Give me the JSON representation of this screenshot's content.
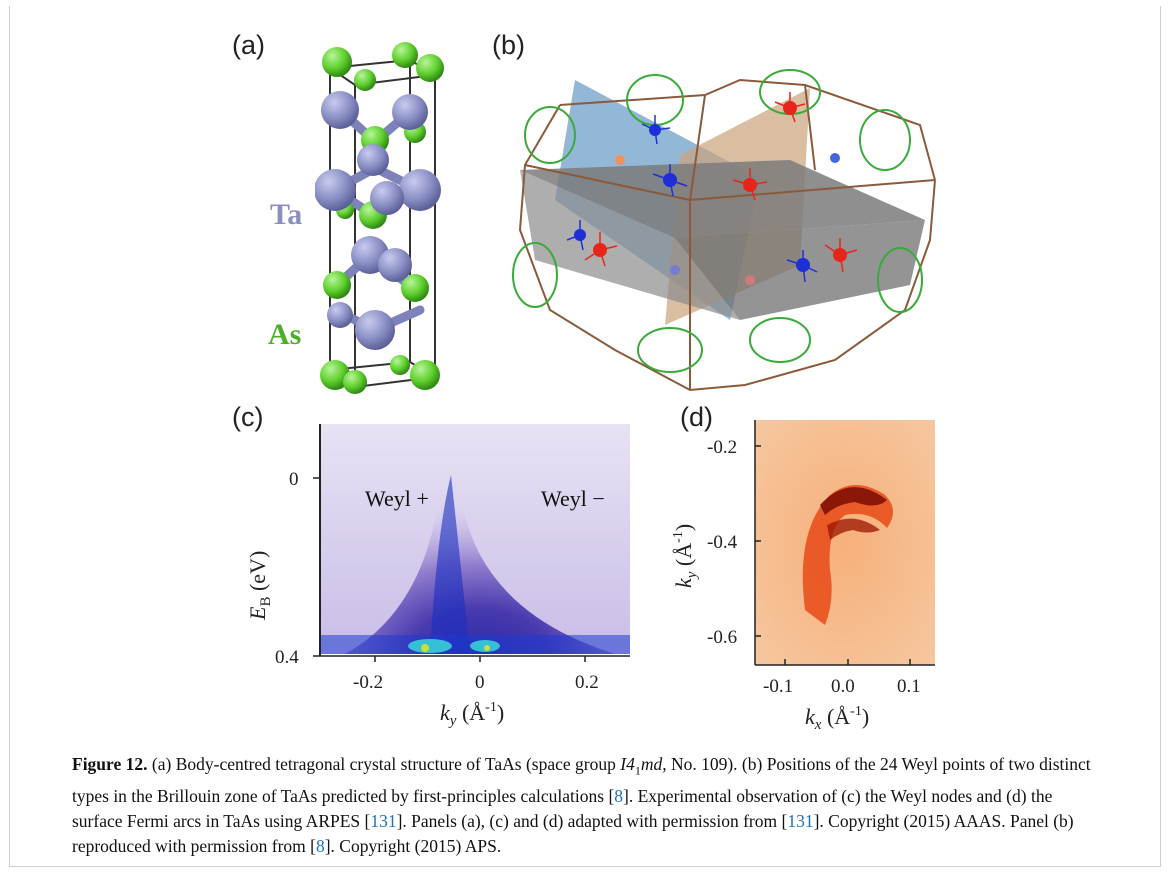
{
  "panels": {
    "a": {
      "label": "(a)",
      "ta_label": "Ta",
      "as_label": "As",
      "ta_color": "#8a8fbf",
      "as_color": "#4caf2a"
    },
    "b": {
      "label": "(b)"
    },
    "c": {
      "label": "(c)",
      "y_ticks": [
        "0",
        "0.4"
      ],
      "x_ticks": [
        "-0.2",
        "0",
        "0.2"
      ],
      "y_label_main": "E",
      "y_label_sub": "B",
      "y_label_unit": " (eV)",
      "x_label_main": "k",
      "x_label_sub": "y",
      "x_label_unit": " (Å",
      "x_label_exp": "-1",
      "x_label_close": ")",
      "weyl_plus": "Weyl +",
      "weyl_minus": "Weyl −"
    },
    "d": {
      "label": "(d)",
      "y_ticks": [
        "-0.2",
        "-0.4",
        "-0.6"
      ],
      "x_ticks": [
        "-0.1",
        "0.0",
        "0.1"
      ],
      "y_label_main": "k",
      "y_label_sub": "y",
      "y_label_unit": " (Å",
      "y_label_exp": "-1",
      "y_label_close": ")",
      "x_label_main": "k",
      "x_label_sub": "x",
      "x_label_unit": " (Å",
      "x_label_exp": "-1",
      "x_label_close": ")"
    }
  },
  "caption": {
    "lead": "Figure 12.",
    "t1": " (a) Body-centred tetragonal crystal structure of TaAs (space group ",
    "sg_i": "I",
    "sg_4": "4",
    "sg_1": "1",
    "sg_md": "md,",
    "t2": " No. 109). (b) Positions of the 24 Weyl points of two distinct types in the Brillouin zone of TaAs predicted by first-principles calculations [",
    "r1": "8",
    "t3": "]. Experimental observation of (c) the Weyl nodes and (d) the surface Fermi arcs in TaAs using ARPES [",
    "r2": "131",
    "t4": "]. Panels (a), (c) and (d) adapted with permission from [",
    "r3": "131",
    "t5": "]. Copyright (2015) AAAS. Panel (b) reproduced with permission from [",
    "r4": "8",
    "t6": "]. Copyright (2015) APS."
  }
}
